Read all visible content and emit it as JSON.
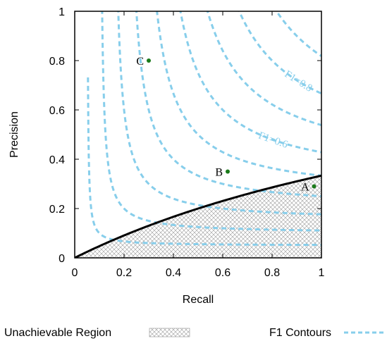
{
  "chart_data": {
    "type": "line",
    "title": "",
    "xlabel": "Recall",
    "ylabel": "Precision",
    "xlim": [
      0,
      1
    ],
    "ylim": [
      0,
      1
    ],
    "x_ticks": [
      "0",
      "0.2",
      "0.4",
      "0.6",
      "0.8",
      "1"
    ],
    "y_ticks": [
      "0",
      "0.2",
      "0.4",
      "0.6",
      "0.8",
      "1"
    ],
    "grid": false,
    "legend": {
      "placement": "bottom",
      "entries": [
        {
          "label": "Unachievable Region",
          "style": "crosshatch"
        },
        {
          "label": "F1 Contours",
          "style": "dashed"
        }
      ]
    },
    "boundary": {
      "description": "Minimum precision curve p = r / (r + 2), i.e. precision of random classifier at prevalence 1/3",
      "x": [
        0,
        0.1,
        0.2,
        0.3,
        0.4,
        0.5,
        0.6,
        0.7,
        0.8,
        0.9,
        1.0
      ],
      "y": [
        0,
        0.048,
        0.091,
        0.13,
        0.167,
        0.2,
        0.231,
        0.259,
        0.286,
        0.31,
        0.333
      ]
    },
    "f1_contours": [
      0.1,
      0.2,
      0.3,
      0.4,
      0.5,
      0.6,
      0.7,
      0.8,
      0.9
    ],
    "contour_labels": [
      {
        "text": "F1=0.8",
        "f1": 0.8,
        "x": 0.9
      },
      {
        "text": "F1=0.6",
        "f1": 0.6,
        "x": 0.8
      }
    ],
    "points": [
      {
        "label": "A",
        "x": 0.97,
        "y": 0.29
      },
      {
        "label": "B",
        "x": 0.62,
        "y": 0.35
      },
      {
        "label": "C",
        "x": 0.3,
        "y": 0.8
      }
    ],
    "colors": {
      "contour": "#87CEEB",
      "boundary": "#000000",
      "point": "#1a7a1a",
      "hatch": "#999999"
    }
  }
}
